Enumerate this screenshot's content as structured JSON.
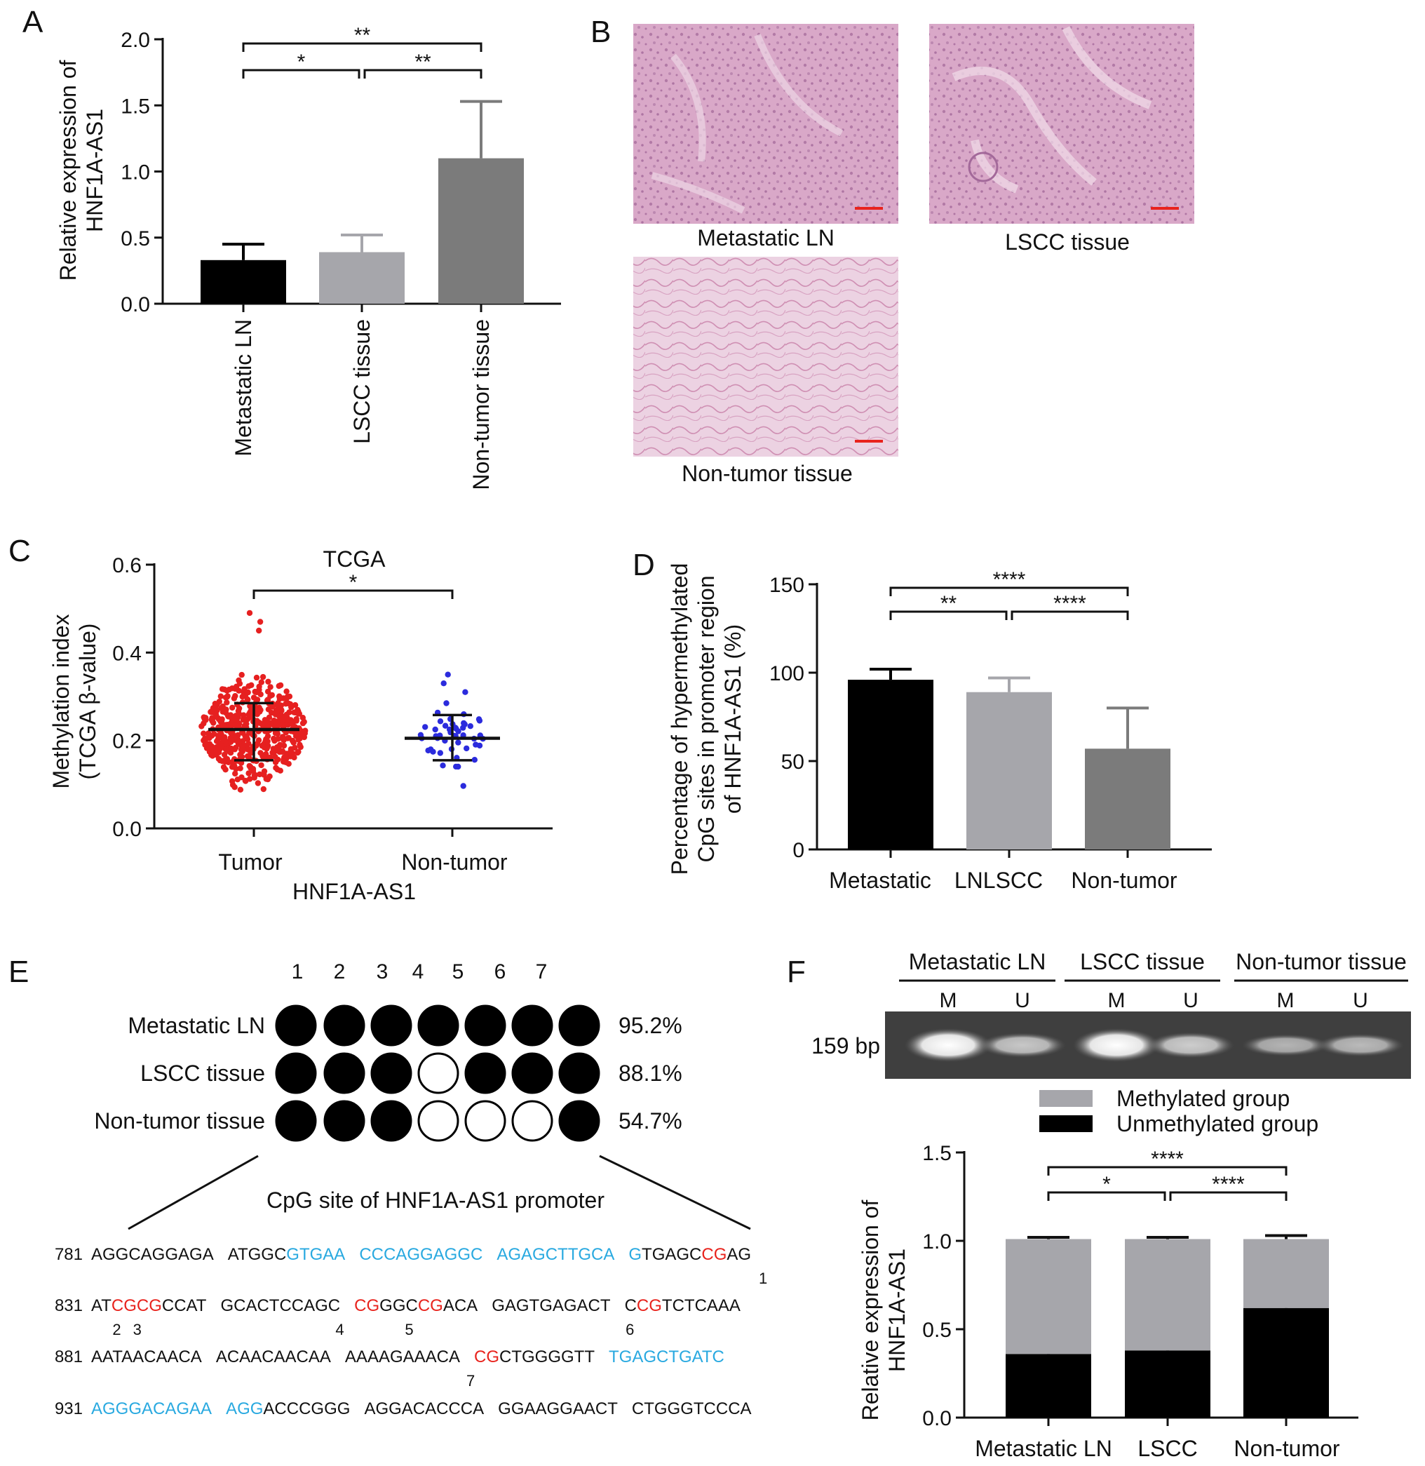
{
  "panels": {
    "a": {
      "letter": "A",
      "chart_data": {
        "type": "bar",
        "ylabel": [
          "Relative expression of",
          "HNF1A-AS1"
        ],
        "ylim": [
          0,
          2.0
        ],
        "yticks": [
          "0.0",
          "0.5",
          "1.0",
          "1.5",
          "2.0"
        ],
        "categories": [
          "Metastatic LN",
          "LSCC tissue",
          "Non-tumor tissue"
        ],
        "values": [
          0.33,
          0.39,
          1.1
        ],
        "errors": [
          0.12,
          0.13,
          0.43
        ],
        "colors": [
          "#000000",
          "#a6a6ab",
          "#7b7b7b"
        ],
        "significance": [
          {
            "from": 0,
            "to": 2,
            "label": "**"
          },
          {
            "from": 0,
            "to": 1,
            "label": "*"
          },
          {
            "from": 1,
            "to": 2,
            "label": "**"
          }
        ]
      }
    },
    "b": {
      "letter": "B",
      "images": [
        {
          "caption": "Metastatic LN"
        },
        {
          "caption": "LSCC tissue"
        },
        {
          "caption": "Non-tumor tissue"
        }
      ],
      "scale_bar_color": "#e8231d"
    },
    "c": {
      "letter": "C",
      "chart_data": {
        "type": "scatter",
        "title": "TCGA",
        "ylabel": [
          "Methylation index",
          "(TCGA β-value)"
        ],
        "xlabel": "HNF1A-AS1",
        "ylim": [
          0,
          0.6
        ],
        "yticks": [
          "0.0",
          "0.2",
          "0.4",
          "0.6"
        ],
        "groups": [
          {
            "name": "Tumor",
            "color": "#e62020",
            "mean": 0.225,
            "sd_low": 0.155,
            "sd_high": 0.285,
            "min": 0.08,
            "max": 0.49,
            "n": 500
          },
          {
            "name": "Non-tumor",
            "color": "#2b2bdd",
            "mean": 0.205,
            "sd_low": 0.155,
            "sd_high": 0.258,
            "min": 0.09,
            "max": 0.35,
            "n": 50
          }
        ],
        "significance": [
          {
            "from": 0,
            "to": 1,
            "label": "*"
          }
        ]
      }
    },
    "d": {
      "letter": "D",
      "chart_data": {
        "type": "bar",
        "ylabel": [
          "Percentage of hypermethylated",
          "CpG sites in promoter region",
          "of HNF1A-AS1 (%)"
        ],
        "ylim": [
          0,
          150
        ],
        "yticks": [
          "0",
          "50",
          "100",
          "150"
        ],
        "categories": [
          "Metastatic",
          "LNLSCC",
          "Non-tumor"
        ],
        "values": [
          96,
          89,
          57
        ],
        "errors": [
          6,
          8,
          23
        ],
        "colors": [
          "#000000",
          "#a6a6ab",
          "#7b7b7b"
        ],
        "significance": [
          {
            "from": 0,
            "to": 2,
            "label": "****"
          },
          {
            "from": 0,
            "to": 1,
            "label": "**"
          },
          {
            "from": 1,
            "to": 2,
            "label": "****"
          }
        ]
      }
    },
    "e": {
      "letter": "E",
      "column_numbers": [
        "1",
        "2",
        "3",
        "4",
        "5",
        "6",
        "7"
      ],
      "rows": [
        {
          "label": "Metastatic LN",
          "pct": "95.2%",
          "sites": [
            true,
            true,
            true,
            true,
            true,
            true,
            true
          ]
        },
        {
          "label": "LSCC tissue",
          "pct": "88.1%",
          "sites": [
            true,
            true,
            true,
            false,
            true,
            true,
            true
          ]
        },
        {
          "label": "Non-tumor tissue",
          "pct": "54.7%",
          "sites": [
            true,
            true,
            true,
            false,
            false,
            false,
            true
          ]
        }
      ],
      "subtitle": "CpG site of HNF1A-AS1 promoter",
      "sequence_lines": [
        {
          "num": "781",
          "segments": [
            {
              "t": "AGGCAGGAGA",
              "c": "k"
            },
            {
              "t": " ",
              "c": "k"
            },
            {
              "t": "ATGGC",
              "c": "k"
            },
            {
              "t": "GTGAA",
              "c": "b"
            },
            {
              "t": " ",
              "c": "k"
            },
            {
              "t": "CCCAGGAGGC",
              "c": "b"
            },
            {
              "t": " ",
              "c": "k"
            },
            {
              "t": "AGAGCTTGCA",
              "c": "b"
            },
            {
              "t": " ",
              "c": "k"
            },
            {
              "t": "G",
              "c": "b"
            },
            {
              "t": "TGAGC",
              "c": "k"
            },
            {
              "t": "CG",
              "c": "r"
            },
            {
              "t": "AG",
              "c": "k"
            }
          ],
          "marks": [
            {
              "label": "1",
              "col": 58.5
            }
          ]
        },
        {
          "num": "831",
          "segments": [
            {
              "t": "AT",
              "c": "k"
            },
            {
              "t": "CGCG",
              "c": "r"
            },
            {
              "t": "CCAT",
              "c": "k"
            },
            {
              "t": " ",
              "c": "k"
            },
            {
              "t": "GCACTCCAGC",
              "c": "k"
            },
            {
              "t": " ",
              "c": "k"
            },
            {
              "t": "CG",
              "c": "r"
            },
            {
              "t": "GGC",
              "c": "k"
            },
            {
              "t": "CG",
              "c": "r"
            },
            {
              "t": "ACA",
              "c": "k"
            },
            {
              "t": " ",
              "c": "k"
            },
            {
              "t": "GAGTGAGACT",
              "c": "k"
            },
            {
              "t": " ",
              "c": "k"
            },
            {
              "t": "C",
              "c": "k"
            },
            {
              "t": "CG",
              "c": "r"
            },
            {
              "t": "TCTCAAA",
              "c": "k"
            }
          ],
          "marks": [
            {
              "label": "2",
              "col": 2.5
            },
            {
              "label": "3",
              "col": 4.5
            },
            {
              "label": "4",
              "col": 22.5
            },
            {
              "label": "5",
              "col": 27.5
            },
            {
              "label": "6",
              "col": 45.5
            }
          ]
        },
        {
          "num": "881",
          "segments": [
            {
              "t": "AATAACAACA",
              "c": "k"
            },
            {
              "t": " ",
              "c": "k"
            },
            {
              "t": "ACAACAACAA",
              "c": "k"
            },
            {
              "t": " ",
              "c": "k"
            },
            {
              "t": "AAAAGAAACA",
              "c": "k"
            },
            {
              "t": " ",
              "c": "k"
            },
            {
              "t": "CG",
              "c": "r"
            },
            {
              "t": "CTGGGGTT",
              "c": "k"
            },
            {
              "t": " ",
              "c": "k"
            },
            {
              "t": "TGAGCTGATC",
              "c": "b"
            }
          ],
          "marks": [
            {
              "label": "7",
              "col": 33.5
            }
          ]
        },
        {
          "num": "931",
          "segments": [
            {
              "t": "AGGGACAGAA",
              "c": "b"
            },
            {
              "t": " ",
              "c": "k"
            },
            {
              "t": "AGG",
              "c": "b"
            },
            {
              "t": "ACCCGGG",
              "c": "k"
            },
            {
              "t": " ",
              "c": "k"
            },
            {
              "t": "AGGACACCCA",
              "c": "k"
            },
            {
              "t": " ",
              "c": "k"
            },
            {
              "t": "GGAAGGAACT",
              "c": "k"
            },
            {
              "t": " ",
              "c": "k"
            },
            {
              "t": "CTGGGTCCCA",
              "c": "k"
            }
          ],
          "marks": []
        }
      ],
      "colors": {
        "k": "#111111",
        "b": "#29a9e0",
        "r": "#e8231d"
      }
    },
    "f": {
      "letter": "F",
      "gel": {
        "groups": [
          "Metastatic LN",
          "LSCC tissue",
          "Non-tumor tissue"
        ],
        "lanes": [
          "M",
          "U",
          "M",
          "U",
          "M",
          "U"
        ],
        "band_intensity": [
          1.0,
          0.55,
          1.0,
          0.6,
          0.4,
          0.45
        ],
        "size_label": "159 bp"
      },
      "chart_data": {
        "type": "bar",
        "stacked": true,
        "ylabel": [
          "Relative expression of",
          "HNF1A-AS1"
        ],
        "ylim": [
          0,
          1.5
        ],
        "yticks": [
          "0.0",
          "0.5",
          "1.0",
          "1.5"
        ],
        "categories": [
          "Metastatic LN",
          "LSCC",
          "Non-tumor"
        ],
        "series": [
          {
            "name": "Unmethylated group",
            "color": "#000000",
            "values": [
              0.36,
              0.38,
              0.62
            ],
            "errors": [
              0.01,
              0.01,
              0.02
            ]
          },
          {
            "name": "Methylated group",
            "color": "#a6a6ab",
            "values": [
              0.65,
              0.63,
              0.39
            ],
            "errors": [
              0.01,
              0.01,
              0.02
            ]
          }
        ],
        "legend_order": [
          "Methylated group",
          "Unmethylated group"
        ],
        "legend_position": "top",
        "significance": [
          {
            "from": 0,
            "to": 2,
            "label": "****"
          },
          {
            "from": 0,
            "to": 1,
            "label": "*"
          },
          {
            "from": 1,
            "to": 2,
            "label": "****"
          }
        ]
      }
    }
  }
}
